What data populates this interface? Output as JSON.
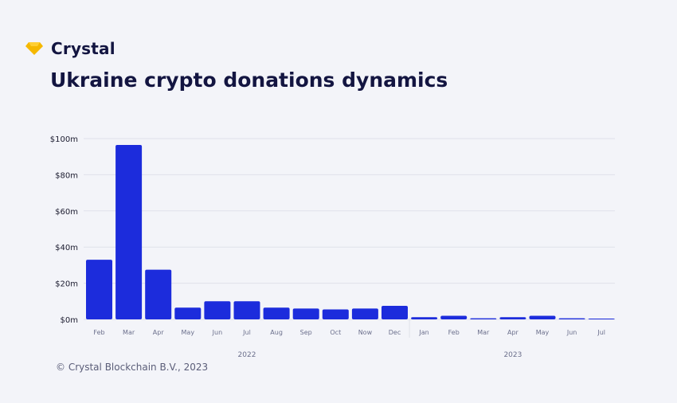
{
  "brand": {
    "name": "Crystal",
    "logo_icon": "diamond-icon",
    "logo_color": "#f5b800"
  },
  "footer": {
    "copyright": "© Crystal Blockchain B.V., 2023"
  },
  "colors": {
    "background": "#f3f4f9",
    "bar": "#1c2cdc",
    "text": "#131541",
    "grid": "#dfe1ea",
    "axis_text": "#1a1a2e",
    "muted_text": "#6b6f8c"
  },
  "chart_data": {
    "type": "bar",
    "title": "Ukraine crypto donations dynamics",
    "xlabel": "",
    "ylabel": "",
    "categories": [
      "Feb",
      "Mar",
      "Apr",
      "May",
      "Jun",
      "Jul",
      "Aug",
      "Sep",
      "Oct",
      "Now",
      "Dec",
      "Jan",
      "Feb",
      "Mar",
      "Apr",
      "May",
      "Jun",
      "Jul"
    ],
    "values": [
      33,
      96.5,
      27.5,
      6.5,
      10,
      10,
      6.5,
      6,
      5.5,
      6,
      7.5,
      1.2,
      2,
      0.6,
      1.2,
      2,
      0.6,
      0.3
    ],
    "year_groups": [
      {
        "label": "2022",
        "count": 11
      },
      {
        "label": "2023",
        "count": 7
      }
    ],
    "ylim": [
      0,
      100
    ],
    "y_ticks": [
      0,
      20,
      40,
      60,
      80,
      100
    ],
    "y_tick_labels": [
      "$0m",
      "$20m",
      "$40m",
      "$60m",
      "$80m",
      "$100m"
    ],
    "unit": "$m",
    "grid": true,
    "legend": "none"
  }
}
